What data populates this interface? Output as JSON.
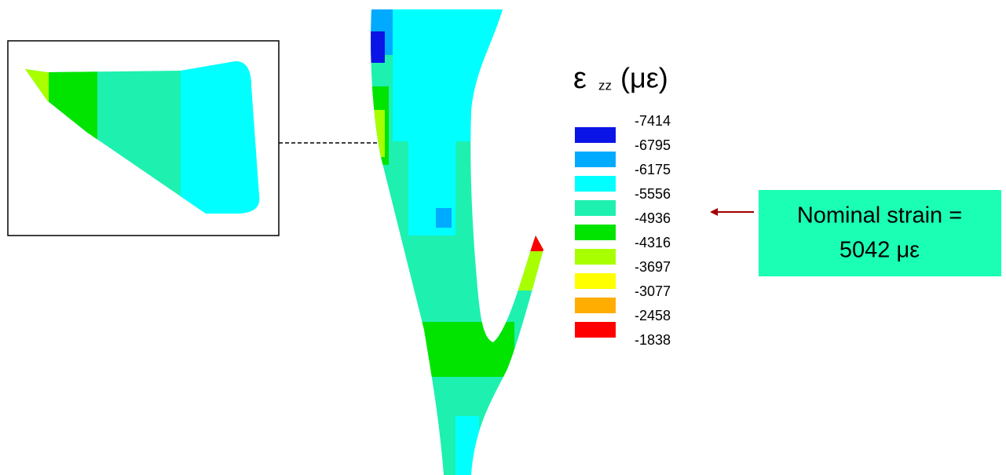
{
  "legend": {
    "title": {
      "symbol": "ε",
      "subscript": "zz",
      "unit": "(με)"
    },
    "labels": [
      "-7414",
      "-6795",
      "-6175",
      "-5556",
      "-4936",
      "-4316",
      "-3697",
      "-3077",
      "-2458",
      "-1838"
    ],
    "swatch_colors": [
      "#0a14e6",
      "#00aaff",
      "#00ffff",
      "#1ef0b0",
      "#00e400",
      "#a8ff00",
      "#ffff00",
      "#ffad00",
      "#ff0000"
    ]
  },
  "annotation": {
    "lines": [
      "Nominal strain =",
      "5042 με"
    ],
    "color": "#1affb4"
  }
}
